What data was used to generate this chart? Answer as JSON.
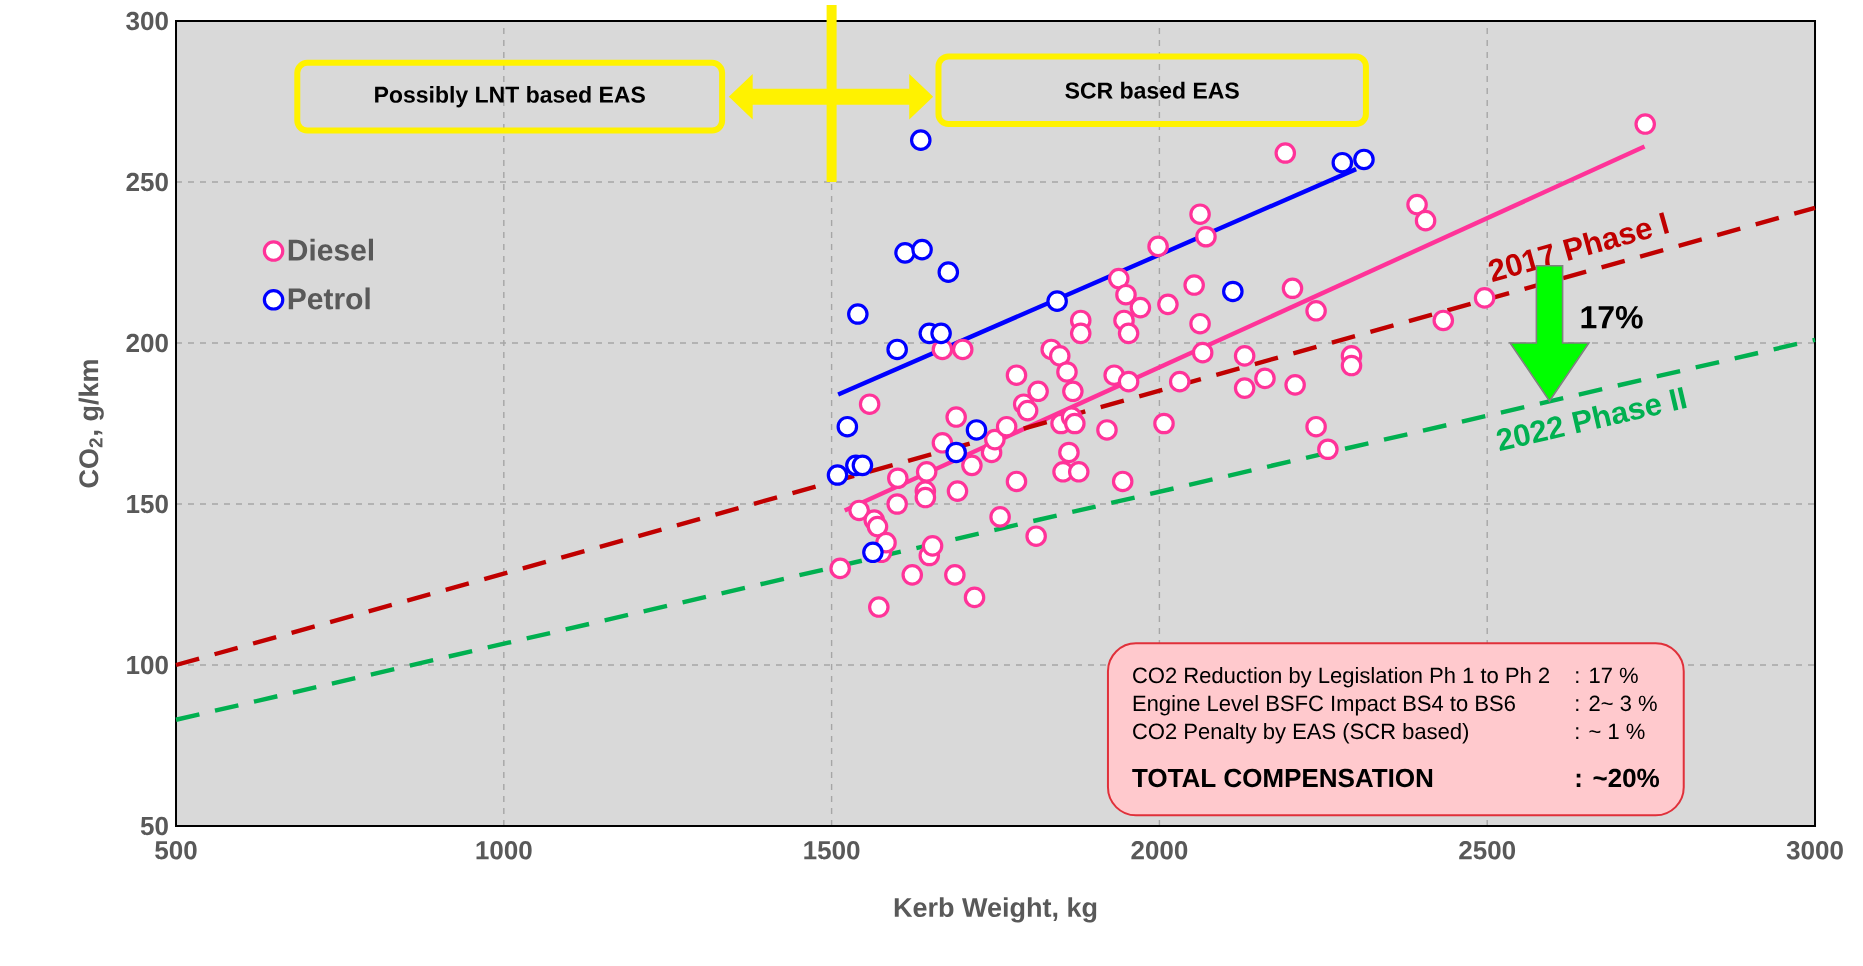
{
  "chart_data": {
    "type": "scatter",
    "xlabel": "Kerb Weight, kg",
    "ylabel": "CO$_{2}$, g/km",
    "xlim": [
      500,
      3000
    ],
    "ylim": [
      50,
      300
    ],
    "xticks": [
      500,
      1000,
      1500,
      2000,
      2500,
      3000
    ],
    "yticks": [
      50,
      100,
      150,
      200,
      250,
      300
    ],
    "grid": true,
    "legend": "top left",
    "series": [
      {
        "name": "Diesel",
        "color": "#ff3399",
        "marker": "circle",
        "x": [
          1513,
          1558,
          1542,
          1565,
          1570,
          1576,
          1583,
          1572,
          1601,
          1600,
          1623,
          1643,
          1643,
          1645,
          1649,
          1654,
          1669,
          1669,
          1700,
          1690,
          1692,
          1688,
          1714,
          1718,
          1744,
          1749,
          1767,
          1757,
          1782,
          1782,
          1793,
          1799,
          1812,
          1815,
          1835,
          1848,
          1850,
          1853,
          1859,
          1862,
          1866,
          1871,
          1868,
          1877,
          1880,
          1880,
          1920,
          1931,
          1938,
          1946,
          1949,
          1953,
          1953,
          1944,
          1971,
          1998,
          2007,
          2013,
          2031,
          2053,
          2062,
          2062,
          2066,
          2071,
          2130,
          2130,
          2161,
          2192,
          2203,
          2207,
          2239,
          2239,
          2257,
          2293,
          2293,
          2393,
          2406,
          2433,
          2496,
          2741
        ],
        "values": [
          130,
          181,
          148,
          145,
          143,
          135,
          138,
          118,
          158,
          150,
          128,
          154,
          152,
          160,
          134,
          137,
          169,
          198,
          198,
          177,
          154,
          128,
          162,
          121,
          166,
          170,
          174,
          146,
          157,
          190,
          181,
          179,
          140,
          185,
          198,
          196,
          175,
          160,
          191,
          166,
          177,
          175,
          185,
          160,
          207,
          203,
          173,
          190,
          220,
          207,
          215,
          203,
          188,
          157,
          211,
          230,
          175,
          212,
          188,
          218,
          240,
          206,
          197,
          233,
          196,
          186,
          189,
          259,
          217,
          187,
          210,
          174,
          167,
          196,
          193,
          243,
          238,
          207,
          214,
          268
        ]
      },
      {
        "name": "Petrol",
        "color": "#0000ff",
        "marker": "circle",
        "x": [
          1509,
          1524,
          1537,
          1547,
          1540,
          1563,
          1600,
          1612,
          1638,
          1636,
          1649,
          1667,
          1678,
          1690,
          1721,
          1844,
          2112,
          2279,
          2312
        ],
        "values": [
          159,
          174,
          162,
          162,
          209,
          135,
          198,
          228,
          229,
          263,
          203,
          203,
          222,
          166,
          173,
          213,
          216,
          256,
          257
        ]
      },
      {
        "type": "line",
        "color": "#0000ff",
        "marker": "none",
        "x": [
          1510,
          2300
        ],
        "values": [
          184,
          254
        ]
      },
      {
        "type": "line",
        "color": "#ff3399",
        "marker": "none",
        "x": [
          1520,
          2740
        ],
        "values": [
          148,
          261
        ]
      },
      {
        "type": "line",
        "name": "2017 Phase I",
        "color": "#c00000",
        "marker": "none",
        "line_style": "dashed",
        "x": [
          500,
          3000
        ],
        "values": [
          100,
          242
        ]
      },
      {
        "type": "line",
        "name": "2022 Phase II",
        "color": "#00b050",
        "marker": "none",
        "line_style": "dashed",
        "x": [
          500,
          3000
        ],
        "values": [
          83,
          201
        ]
      }
    ],
    "annotations": [
      "Possibly LNT based EAS",
      "SCR based EAS",
      "17%",
      "CO2 Reduction by Legislation Ph 1 to Ph 2",
      ":      17 %",
      "Engine Level BSFC Impact BS4 to BS6",
      ":  2~ 3 %",
      "CO2 Penalty by EAS  (SCR based)",
      ":     ~ 1 %",
      "TOTAL COMPENSATION",
      ":  ~20%"
    ]
  }
}
